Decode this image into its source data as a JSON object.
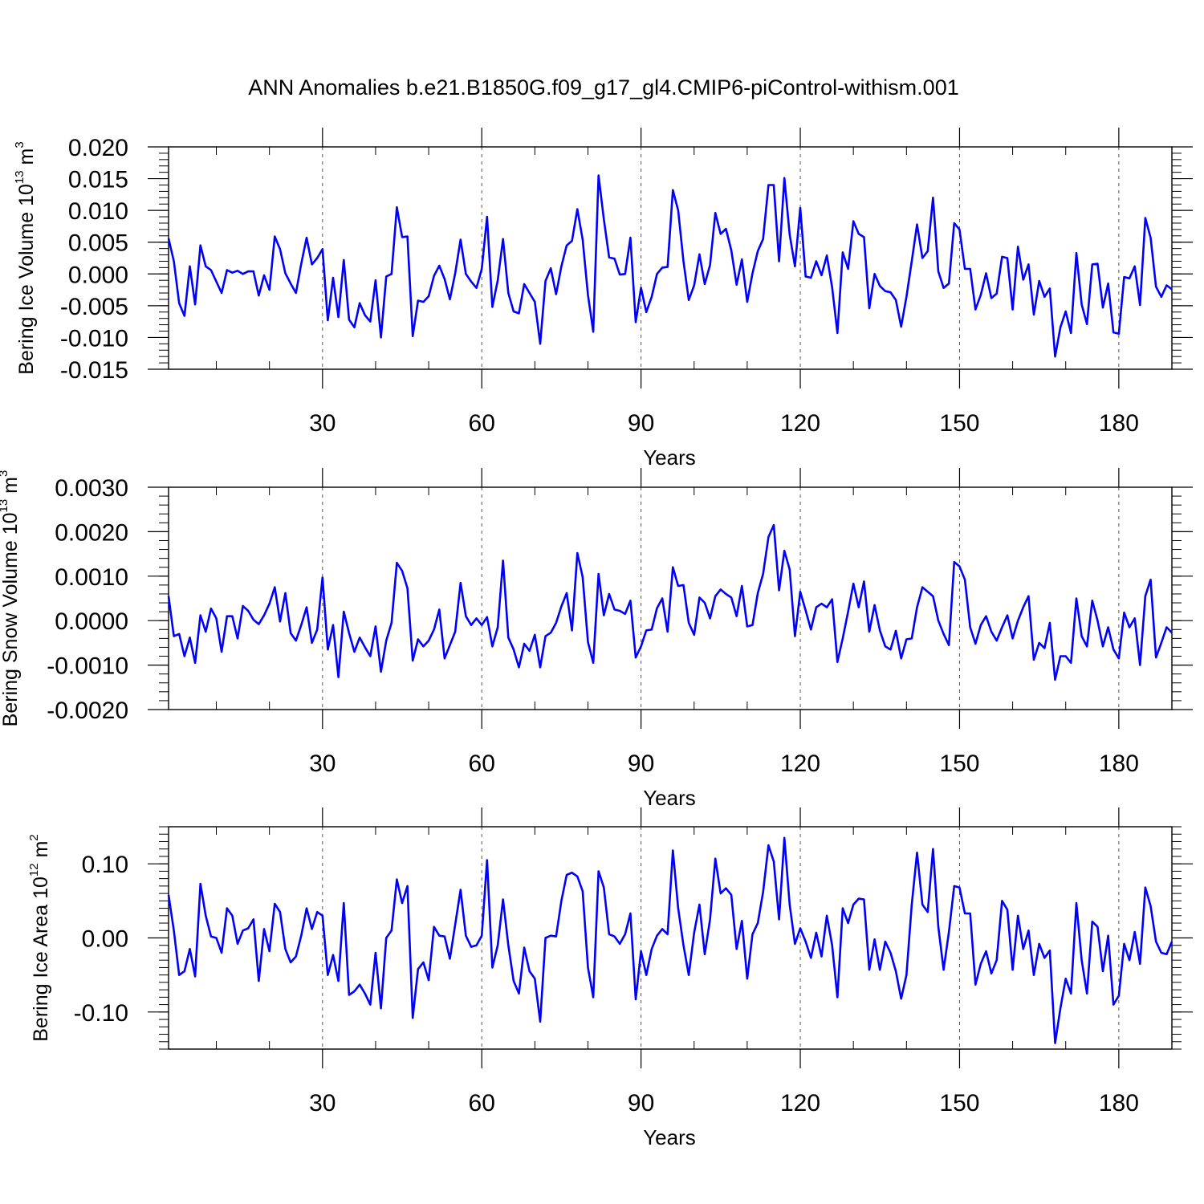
{
  "title": "ANN Anomalies b.e21.B1850G.f09_g17_gl4.CMIP6-piControl-withism.001",
  "colors": {
    "line": "#0000ff",
    "axis": "#000000",
    "grid": "#555555",
    "background": "#ffffff"
  },
  "chart_data": [
    {
      "type": "line",
      "xlabel": "Years",
      "ylabel": {
        "main": "Bering Ice Volume 10",
        "exponent": "13",
        "unit": " m",
        "unit_exponent": "3"
      },
      "xlim": [
        1,
        190
      ],
      "ylim": [
        -0.015,
        0.02
      ],
      "xticks": [
        30,
        60,
        90,
        120,
        150,
        180
      ],
      "xtick_labels": [
        "30",
        "60",
        "90",
        "120",
        "150",
        "180"
      ],
      "yticks": [
        -0.015,
        -0.01,
        -0.005,
        0.0,
        0.005,
        0.01,
        0.015,
        0.02
      ],
      "ytick_labels": [
        "-0.015",
        "-0.010",
        "-0.005",
        "0.000",
        "0.005",
        "0.010",
        "0.015",
        "0.020"
      ],
      "grid": "vertical dashed at major x ticks",
      "x_start": 1,
      "values": [
        0.0056,
        0.002,
        -0.0046,
        -0.0066,
        0.0012,
        -0.0048,
        0.0045,
        0.0012,
        0.0006,
        -0.0012,
        -0.003,
        0.0006,
        0.0002,
        0.0005,
        0.0,
        0.0004,
        0.0004,
        -0.0034,
        -0.0002,
        -0.0025,
        0.0059,
        0.0039,
        0.0001,
        -0.0015,
        -0.003,
        0.0016,
        0.0057,
        0.0015,
        0.0025,
        0.0039,
        -0.0073,
        -0.0006,
        -0.0068,
        0.0022,
        -0.0072,
        -0.0084,
        -0.0046,
        -0.0065,
        -0.0075,
        -0.001,
        -0.01,
        -0.0004,
        0.0,
        0.0105,
        0.0058,
        0.0059,
        -0.0098,
        -0.0042,
        -0.0044,
        -0.0035,
        -0.0003,
        0.0013,
        -0.0008,
        -0.004,
        0.0001,
        0.0054,
        0.0,
        -0.0012,
        -0.0022,
        0.0008,
        0.009,
        -0.0052,
        -0.001,
        0.0055,
        -0.003,
        -0.0059,
        -0.0062,
        -0.0016,
        -0.003,
        -0.0044,
        -0.011,
        -0.0011,
        0.0009,
        -0.0032,
        0.0012,
        0.0045,
        0.0052,
        0.0102,
        0.0054,
        -0.0033,
        -0.0091,
        0.0155,
        0.0086,
        0.0026,
        0.0024,
        -0.0001,
        0.0,
        0.0057,
        -0.0076,
        -0.0022,
        -0.006,
        -0.0036,
        0.0,
        0.001,
        0.0011,
        0.0132,
        0.01,
        0.002,
        -0.0041,
        -0.0018,
        0.0031,
        -0.0016,
        0.0014,
        0.0096,
        0.0063,
        0.0071,
        0.0037,
        -0.0017,
        0.0023,
        -0.0044,
        0.0001,
        0.0036,
        0.0055,
        0.014,
        0.014,
        0.002,
        0.0151,
        0.0062,
        0.0012,
        0.0104,
        -0.0004,
        -0.0006,
        0.002,
        -0.0002,
        0.0029,
        -0.0021,
        -0.0093,
        0.0034,
        0.0008,
        0.0083,
        0.0063,
        0.0058,
        -0.0054,
        0.0,
        -0.0019,
        -0.0027,
        -0.0029,
        -0.0041,
        -0.0083,
        -0.0036,
        0.002,
        0.0078,
        0.0025,
        0.0036,
        0.012,
        0.0004,
        -0.0022,
        -0.0015,
        0.008,
        0.007,
        0.0008,
        0.0008,
        -0.0056,
        -0.0033,
        0.0001,
        -0.0038,
        -0.0031,
        0.0027,
        0.0025,
        -0.0056,
        0.0043,
        -0.0009,
        0.0015,
        -0.0064,
        -0.0011,
        -0.0036,
        -0.0023,
        -0.013,
        -0.0084,
        -0.0059,
        -0.0093,
        0.0033,
        -0.0048,
        -0.0079,
        0.0015,
        0.0016,
        -0.0053,
        -0.0015,
        -0.0092,
        -0.0094,
        -0.0005,
        -0.0007,
        0.0012,
        -0.0049,
        0.0088,
        0.0057,
        -0.002,
        -0.0036,
        -0.0018,
        -0.0024
      ]
    },
    {
      "type": "line",
      "xlabel": "Years",
      "ylabel": {
        "main": "Bering Snow Volume 10",
        "exponent": "13",
        "unit": " m",
        "unit_exponent": "3"
      },
      "xlim": [
        1,
        190
      ],
      "ylim": [
        -0.002,
        0.003
      ],
      "xticks": [
        30,
        60,
        90,
        120,
        150,
        180
      ],
      "xtick_labels": [
        "30",
        "60",
        "90",
        "120",
        "150",
        "180"
      ],
      "yticks": [
        -0.002,
        -0.001,
        0.0,
        0.001,
        0.002,
        0.003
      ],
      "ytick_labels": [
        "-0.0020",
        "-0.0010",
        "0.0000",
        "0.0010",
        "0.0020",
        "0.0030"
      ],
      "grid": "vertical dashed at major x ticks",
      "x_start": 1,
      "values": [
        0.00055,
        -0.00035,
        -0.0003,
        -0.0008,
        -0.00038,
        -0.00095,
        0.00012,
        -0.00025,
        0.00027,
        5e-05,
        -0.0007,
        0.0001,
        0.0001,
        -0.0004,
        0.00033,
        0.00022,
        2e-05,
        -8e-05,
        0.00012,
        0.00038,
        0.00075,
        -2e-05,
        0.00062,
        -0.00028,
        -0.00045,
        -0.0001,
        0.0003,
        -0.0005,
        -0.0002,
        0.00097,
        -0.00065,
        -0.0001,
        -0.00127,
        0.0002,
        -0.00028,
        -0.0007,
        -0.00038,
        -0.0006,
        -0.0008,
        -0.00013,
        -0.00115,
        -0.00045,
        -5e-05,
        0.0013,
        0.00112,
        0.00073,
        -0.0009,
        -0.00042,
        -0.00058,
        -0.00045,
        -0.0002,
        0.00025,
        -0.00085,
        -0.00055,
        -0.00025,
        0.00085,
        0.0001,
        -0.0001,
        5e-05,
        -0.0001,
        8e-05,
        -0.00058,
        -0.00015,
        0.00135,
        -0.00038,
        -0.00065,
        -0.00105,
        -0.00052,
        -0.00068,
        -0.00032,
        -0.00105,
        -0.00035,
        -0.00027,
        -5e-05,
        0.00032,
        0.00062,
        -0.00022,
        0.00152,
        0.00098,
        -0.00048,
        -0.00095,
        0.00105,
        0.00012,
        0.0006,
        0.00025,
        0.00022,
        0.00015,
        0.00045,
        -0.00083,
        -0.00058,
        -0.00022,
        -0.0002,
        0.00028,
        0.0005,
        -0.00025,
        0.0012,
        0.00078,
        0.0008,
        -5e-05,
        -0.00032,
        0.00052,
        0.0004,
        5e-05,
        0.00055,
        0.0007,
        0.0006,
        0.00052,
        0.0001,
        0.00078,
        -0.00013,
        -0.0001,
        0.00062,
        0.00105,
        0.00188,
        0.00215,
        0.00068,
        0.00157,
        0.00115,
        -0.00035,
        0.00065,
        0.00023,
        -0.0002,
        0.0003,
        0.00038,
        0.0003,
        0.00048,
        -0.00093,
        -0.0004,
        0.0002,
        0.00083,
        0.0003,
        0.00088,
        -0.00025,
        0.00035,
        -0.00022,
        -0.00058,
        -0.00065,
        -0.00023,
        -0.00085,
        -0.00042,
        -0.0004,
        0.0003,
        0.00075,
        0.00065,
        0.00055,
        0.0,
        -0.0003,
        -0.00055,
        0.00132,
        0.00122,
        0.00092,
        -0.00015,
        -0.00052,
        -0.0001,
        0.0001,
        -0.00025,
        -0.00045,
        -0.00015,
        0.00012,
        -0.0004,
        0.0,
        0.0003,
        0.00055,
        -0.00088,
        -0.0005,
        -0.00062,
        -5e-05,
        -0.00133,
        -0.0008,
        -0.0008,
        -0.00095,
        0.0005,
        -0.00035,
        -0.00058,
        0.00045,
        0.0,
        -0.00058,
        -0.00015,
        -0.00065,
        -0.00085,
        0.00018,
        -0.00015,
        5e-05,
        -0.001,
        0.00055,
        0.00092,
        -0.00083,
        -0.0005,
        -0.00015,
        -0.00027
      ]
    },
    {
      "type": "line",
      "xlabel": "Years",
      "ylabel": {
        "main": "Bering Ice Area 10",
        "exponent": "12",
        "unit": " m",
        "unit_exponent": "2"
      },
      "xlim": [
        1,
        190
      ],
      "ylim": [
        -0.15,
        0.15
      ],
      "xticks": [
        30,
        60,
        90,
        120,
        150,
        180
      ],
      "xtick_labels": [
        "30",
        "60",
        "90",
        "120",
        "150",
        "180"
      ],
      "yticks": [
        -0.1,
        0.0,
        0.1
      ],
      "ytick_labels": [
        "-0.10",
        "0.00",
        "0.10"
      ],
      "grid": "vertical dashed at major x ticks",
      "x_start": 1,
      "values": [
        0.058,
        0.01,
        -0.05,
        -0.045,
        -0.015,
        -0.052,
        0.073,
        0.03,
        0.002,
        0.0,
        -0.02,
        0.04,
        0.03,
        -0.008,
        0.01,
        0.013,
        0.025,
        -0.058,
        0.012,
        -0.018,
        0.046,
        0.035,
        -0.015,
        -0.033,
        -0.025,
        0.003,
        0.04,
        0.012,
        0.035,
        0.03,
        -0.05,
        -0.023,
        -0.058,
        0.047,
        -0.077,
        -0.072,
        -0.063,
        -0.075,
        -0.09,
        -0.02,
        -0.095,
        0.0,
        0.01,
        0.079,
        0.047,
        0.07,
        -0.108,
        -0.042,
        -0.033,
        -0.057,
        0.015,
        0.003,
        0.002,
        -0.028,
        0.018,
        0.065,
        0.003,
        -0.012,
        -0.01,
        0.003,
        0.105,
        -0.04,
        -0.01,
        0.052,
        -0.01,
        -0.058,
        -0.075,
        -0.013,
        -0.045,
        -0.055,
        -0.113,
        0.0,
        0.003,
        0.002,
        0.05,
        0.085,
        0.088,
        0.083,
        0.063,
        -0.04,
        -0.08,
        0.09,
        0.068,
        0.005,
        0.002,
        -0.008,
        0.005,
        0.033,
        -0.083,
        -0.018,
        -0.05,
        -0.015,
        0.003,
        0.012,
        0.005,
        0.118,
        0.04,
        -0.01,
        -0.05,
        0.007,
        0.045,
        -0.022,
        0.025,
        0.107,
        0.06,
        0.067,
        0.058,
        -0.015,
        0.023,
        -0.055,
        0.005,
        0.02,
        0.062,
        0.125,
        0.103,
        0.025,
        0.135,
        0.045,
        -0.008,
        0.013,
        -0.005,
        -0.027,
        0.007,
        -0.025,
        0.03,
        -0.01,
        -0.08,
        0.04,
        0.02,
        0.045,
        0.053,
        0.052,
        -0.043,
        -0.002,
        -0.043,
        -0.005,
        -0.02,
        -0.045,
        -0.082,
        -0.05,
        0.045,
        0.115,
        0.045,
        0.035,
        0.12,
        0.015,
        -0.043,
        0.008,
        0.07,
        0.068,
        0.033,
        0.033,
        -0.063,
        -0.035,
        -0.018,
        -0.048,
        -0.03,
        0.05,
        0.038,
        -0.043,
        0.03,
        -0.015,
        0.01,
        -0.05,
        -0.008,
        -0.027,
        -0.017,
        -0.142,
        -0.095,
        -0.055,
        -0.075,
        0.047,
        -0.03,
        -0.075,
        0.022,
        0.015,
        -0.045,
        0.003,
        -0.09,
        -0.078,
        -0.008,
        -0.03,
        0.008,
        -0.035,
        0.068,
        0.043,
        -0.005,
        -0.02,
        -0.022,
        -0.005
      ]
    }
  ]
}
